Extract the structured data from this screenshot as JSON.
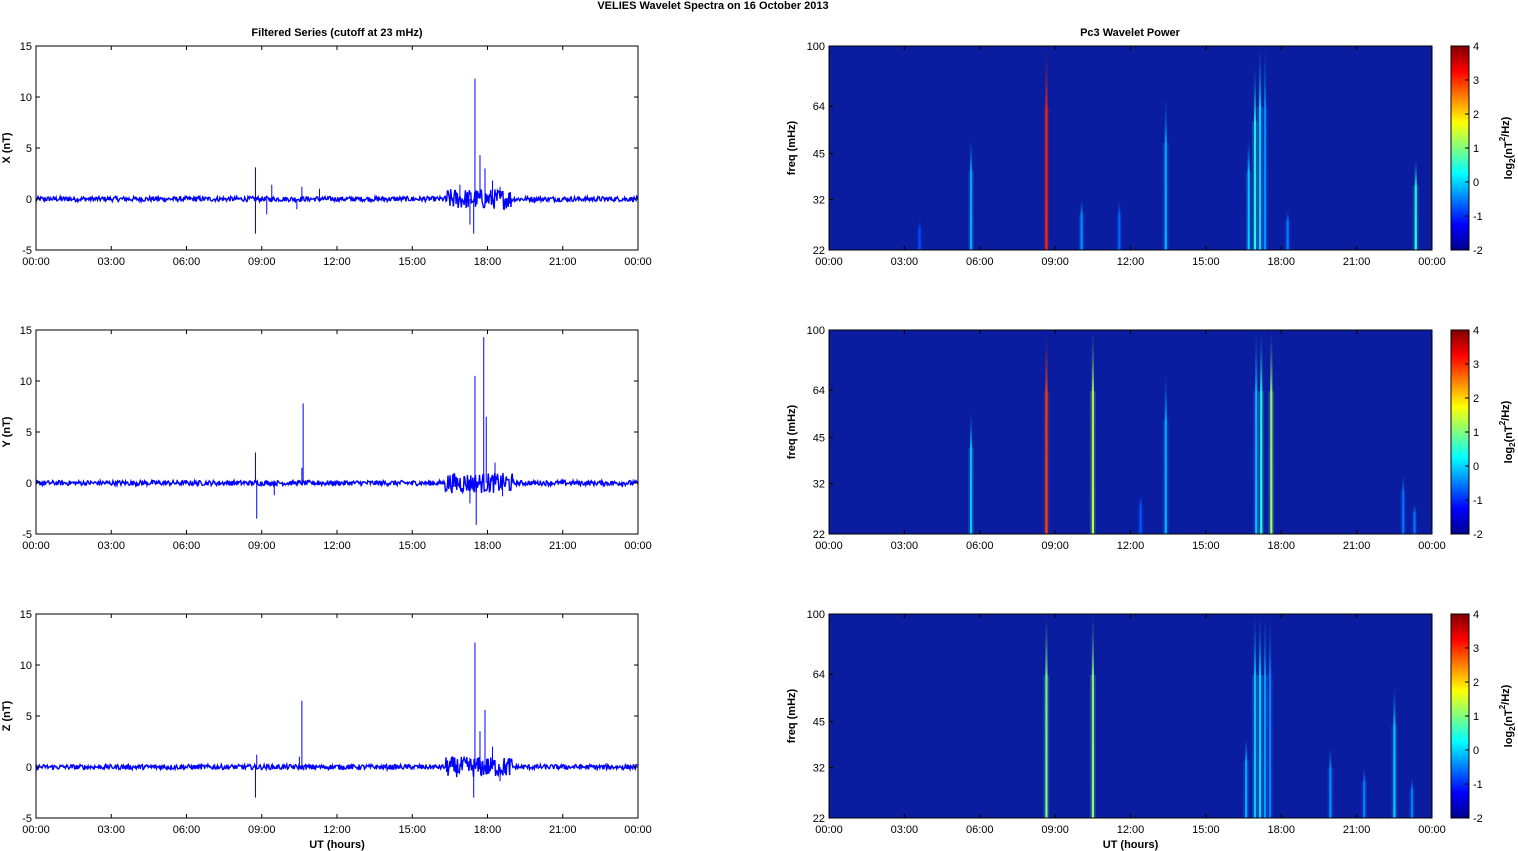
{
  "figure": {
    "title": "VELIES Wavelet Spectra on 16 October   2013",
    "left_title": "Filtered Series (cutoff at 23 mHz)",
    "right_title": "Pc3 Wavelet Power",
    "x_label": "UT (hours)",
    "series_color": "#0000ff"
  },
  "chart_data": [
    {
      "type": "line",
      "title": "Filtered Series (cutoff at 23 mHz)",
      "ylabel": "X (nT)",
      "xlabel": "",
      "x_ticks": [
        "00:00",
        "03:00",
        "06:00",
        "09:00",
        "12:00",
        "15:00",
        "18:00",
        "21:00",
        "00:00"
      ],
      "xlim_hours": [
        0,
        24
      ],
      "ylim": [
        -5,
        15
      ],
      "y_ticks": [
        -5,
        0,
        5,
        10,
        15
      ],
      "baseline_amplitude": 0.25,
      "spikes": [
        {
          "x_hours": 8.75,
          "y": 3.1
        },
        {
          "x_hours": 8.75,
          "y": -3.4
        },
        {
          "x_hours": 9.4,
          "y": 1.4
        },
        {
          "x_hours": 9.2,
          "y": -1.5
        },
        {
          "x_hours": 10.6,
          "y": 1.2
        },
        {
          "x_hours": 10.4,
          "y": -1.0
        },
        {
          "x_hours": 11.3,
          "y": 1.0
        },
        {
          "x_hours": 16.9,
          "y": 1.4
        },
        {
          "x_hours": 17.5,
          "y": 11.8
        },
        {
          "x_hours": 17.45,
          "y": -3.4
        },
        {
          "x_hours": 17.7,
          "y": 4.3
        },
        {
          "x_hours": 17.9,
          "y": 3.0
        },
        {
          "x_hours": 17.3,
          "y": -2.5
        },
        {
          "x_hours": 18.2,
          "y": 1.8
        },
        {
          "x_hours": 18.5,
          "y": 1.2
        }
      ],
      "active_band_hours": [
        16.3,
        19.0
      ]
    },
    {
      "type": "line",
      "title": "",
      "ylabel": "Y (nT)",
      "xlabel": "",
      "x_ticks": [
        "00:00",
        "03:00",
        "06:00",
        "09:00",
        "12:00",
        "15:00",
        "18:00",
        "21:00",
        "00:00"
      ],
      "xlim_hours": [
        0,
        24
      ],
      "ylim": [
        -5,
        15
      ],
      "y_ticks": [
        -5,
        0,
        5,
        10,
        15
      ],
      "baseline_amplitude": 0.25,
      "spikes": [
        {
          "x_hours": 8.75,
          "y": 3.0
        },
        {
          "x_hours": 8.8,
          "y": -3.5
        },
        {
          "x_hours": 10.65,
          "y": 7.8
        },
        {
          "x_hours": 10.6,
          "y": 1.5
        },
        {
          "x_hours": 9.5,
          "y": -1.2
        },
        {
          "x_hours": 17.5,
          "y": 10.5
        },
        {
          "x_hours": 17.85,
          "y": 14.3
        },
        {
          "x_hours": 17.95,
          "y": 6.5
        },
        {
          "x_hours": 17.55,
          "y": -4.1
        },
        {
          "x_hours": 17.3,
          "y": -2.0
        },
        {
          "x_hours": 18.3,
          "y": 2.0
        },
        {
          "x_hours": 18.6,
          "y": -1.3
        }
      ],
      "active_band_hours": [
        16.3,
        19.0
      ]
    },
    {
      "type": "line",
      "title": "",
      "ylabel": "Z (nT)",
      "xlabel": "UT (hours)",
      "x_ticks": [
        "00:00",
        "03:00",
        "06:00",
        "09:00",
        "12:00",
        "15:00",
        "18:00",
        "21:00",
        "00:00"
      ],
      "xlim_hours": [
        0,
        24
      ],
      "ylim": [
        -5,
        15
      ],
      "y_ticks": [
        -5,
        0,
        5,
        10,
        15
      ],
      "baseline_amplitude": 0.25,
      "spikes": [
        {
          "x_hours": 8.75,
          "y": -3.0
        },
        {
          "x_hours": 8.8,
          "y": 1.2
        },
        {
          "x_hours": 10.6,
          "y": 6.5
        },
        {
          "x_hours": 10.5,
          "y": 1.0
        },
        {
          "x_hours": 17.5,
          "y": 12.2
        },
        {
          "x_hours": 17.45,
          "y": -3.0
        },
        {
          "x_hours": 17.9,
          "y": 5.6
        },
        {
          "x_hours": 17.7,
          "y": 3.5
        },
        {
          "x_hours": 18.2,
          "y": 2.0
        },
        {
          "x_hours": 18.5,
          "y": -1.4
        }
      ],
      "active_band_hours": [
        16.3,
        19.0
      ]
    },
    {
      "type": "heatmap",
      "title": "Pc3 Wavelet Power",
      "ylabel": "freq (mHz)",
      "xlabel": "",
      "x_ticks": [
        "00:00",
        "03:00",
        "06:00",
        "09:00",
        "12:00",
        "15:00",
        "18:00",
        "21:00",
        "00:00"
      ],
      "y_ticks": [
        "22",
        "32",
        "45",
        "64",
        "100"
      ],
      "colorbar_label": "log2(nT2/Hz)",
      "colorbar_ticks": [
        -2,
        -1,
        0,
        1,
        2,
        3,
        4
      ],
      "clim": [
        -2,
        4
      ],
      "background_level": -1.7,
      "streaks": [
        {
          "x_hours": 3.6,
          "level": -1.3,
          "top_frac": 0.15
        },
        {
          "x_hours": 5.65,
          "level": -0.6,
          "top_frac": 0.55
        },
        {
          "x_hours": 8.65,
          "level": 3.2,
          "top_frac": 1.0
        },
        {
          "x_hours": 10.05,
          "level": -0.8,
          "top_frac": 0.25
        },
        {
          "x_hours": 11.55,
          "level": -1.1,
          "top_frac": 0.25
        },
        {
          "x_hours": 13.4,
          "level": -0.6,
          "top_frac": 0.75
        },
        {
          "x_hours": 16.7,
          "level": -0.4,
          "top_frac": 0.55
        },
        {
          "x_hours": 16.95,
          "level": 0.1,
          "top_frac": 0.9
        },
        {
          "x_hours": 17.15,
          "level": -0.3,
          "top_frac": 1.0
        },
        {
          "x_hours": 17.35,
          "level": -0.8,
          "top_frac": 1.0
        },
        {
          "x_hours": 18.25,
          "level": -0.9,
          "top_frac": 0.2
        },
        {
          "x_hours": 23.35,
          "level": 0.2,
          "top_frac": 0.45
        }
      ]
    },
    {
      "type": "heatmap",
      "title": "",
      "ylabel": "freq (mHz)",
      "xlabel": "",
      "x_ticks": [
        "00:00",
        "03:00",
        "06:00",
        "09:00",
        "12:00",
        "15:00",
        "18:00",
        "21:00",
        "00:00"
      ],
      "y_ticks": [
        "22",
        "32",
        "45",
        "64",
        "100"
      ],
      "colorbar_label": "log2(nT2/Hz)",
      "colorbar_ticks": [
        -2,
        -1,
        0,
        1,
        2,
        3,
        4
      ],
      "clim": [
        -2,
        4
      ],
      "background_level": -1.7,
      "streaks": [
        {
          "x_hours": 5.65,
          "level": -0.4,
          "top_frac": 0.6
        },
        {
          "x_hours": 8.65,
          "level": 3.0,
          "top_frac": 1.0
        },
        {
          "x_hours": 10.5,
          "level": 1.2,
          "top_frac": 1.0
        },
        {
          "x_hours": 12.4,
          "level": -1.2,
          "top_frac": 0.2
        },
        {
          "x_hours": 13.4,
          "level": -0.6,
          "top_frac": 0.8
        },
        {
          "x_hours": 17.0,
          "level": -0.5,
          "top_frac": 1.0
        },
        {
          "x_hours": 17.2,
          "level": 0.2,
          "top_frac": 1.0
        },
        {
          "x_hours": 17.6,
          "level": 1.0,
          "top_frac": 1.0
        },
        {
          "x_hours": 22.85,
          "level": -1.0,
          "top_frac": 0.3
        },
        {
          "x_hours": 23.3,
          "level": -1.0,
          "top_frac": 0.15
        }
      ]
    },
    {
      "type": "heatmap",
      "title": "",
      "ylabel": "freq (mHz)",
      "xlabel": "UT (hours)",
      "x_ticks": [
        "00:00",
        "03:00",
        "06:00",
        "09:00",
        "12:00",
        "15:00",
        "18:00",
        "21:00",
        "00:00"
      ],
      "y_ticks": [
        "22",
        "32",
        "45",
        "64",
        "100"
      ],
      "colorbar_label": "log2(nT2/Hz)",
      "colorbar_ticks": [
        -2,
        -1,
        0,
        1,
        2,
        3,
        4
      ],
      "clim": [
        -2,
        4
      ],
      "background_level": -1.7,
      "streaks": [
        {
          "x_hours": 8.65,
          "level": 0.8,
          "top_frac": 1.0
        },
        {
          "x_hours": 10.5,
          "level": 0.9,
          "top_frac": 1.0
        },
        {
          "x_hours": 16.6,
          "level": -0.6,
          "top_frac": 0.4
        },
        {
          "x_hours": 16.95,
          "level": -0.4,
          "top_frac": 1.0
        },
        {
          "x_hours": 17.15,
          "level": -0.3,
          "top_frac": 1.0
        },
        {
          "x_hours": 17.35,
          "level": -0.7,
          "top_frac": 1.0
        },
        {
          "x_hours": 17.55,
          "level": -0.9,
          "top_frac": 1.0
        },
        {
          "x_hours": 19.95,
          "level": -0.8,
          "top_frac": 0.35
        },
        {
          "x_hours": 21.3,
          "level": -0.9,
          "top_frac": 0.25
        },
        {
          "x_hours": 22.5,
          "level": -0.4,
          "top_frac": 0.65
        },
        {
          "x_hours": 23.2,
          "level": -0.9,
          "top_frac": 0.2
        }
      ]
    }
  ]
}
